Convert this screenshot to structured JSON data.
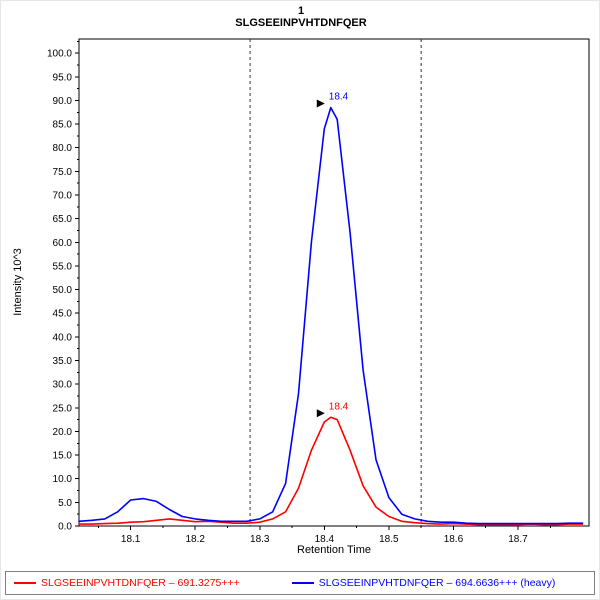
{
  "chart_data": {
    "type": "line",
    "title": "1",
    "subtitle": "SLGSEEINPVHTDNFQER",
    "xlabel": "Retention Time",
    "ylabel": "Intensity 10^3",
    "xlim": [
      18.02,
      18.81
    ],
    "ylim": [
      0,
      103
    ],
    "xticks": [
      18.1,
      18.2,
      18.3,
      18.4,
      18.5,
      18.6,
      18.7
    ],
    "yticks": [
      0,
      5,
      10,
      15,
      20,
      25,
      30,
      35,
      40,
      45,
      50,
      55,
      60,
      65,
      70,
      75,
      80,
      85,
      90,
      95,
      100
    ],
    "grid": false,
    "legend_position": "bottom",
    "integration_boundaries": [
      18.285,
      18.55
    ],
    "x": [
      18.02,
      18.04,
      18.06,
      18.08,
      18.1,
      18.12,
      18.14,
      18.16,
      18.18,
      18.2,
      18.22,
      18.24,
      18.26,
      18.28,
      18.3,
      18.32,
      18.34,
      18.36,
      18.38,
      18.4,
      18.41,
      18.42,
      18.44,
      18.46,
      18.48,
      18.5,
      18.52,
      18.54,
      18.56,
      18.58,
      18.6,
      18.62,
      18.64,
      18.66,
      18.68,
      18.7,
      18.72,
      18.74,
      18.76,
      18.78,
      18.8
    ],
    "series": [
      {
        "name": "SLGSEEINPVHTDNFQER – 691.3275+++",
        "color": "#ff0000",
        "y": [
          0.4,
          0.4,
          0.5,
          0.6,
          0.8,
          0.9,
          1.2,
          1.5,
          1.2,
          0.9,
          1.0,
          0.8,
          0.6,
          0.6,
          0.8,
          1.5,
          3.0,
          8.0,
          16.0,
          22.0,
          23.0,
          22.5,
          16.0,
          8.5,
          4.0,
          2.0,
          1.0,
          0.7,
          0.5,
          0.4,
          0.5,
          0.4,
          0.3,
          0.3,
          0.3,
          0.3,
          0.4,
          0.3,
          0.3,
          0.4,
          0.4
        ],
        "peak": {
          "x": 18.41,
          "y": 23.0,
          "label": "18.4"
        }
      },
      {
        "name": "SLGSEEINPVHTDNFQER – 694.6636+++ (heavy)",
        "color": "#0000ff",
        "y": [
          1.0,
          1.2,
          1.5,
          3.0,
          5.5,
          5.8,
          5.2,
          3.5,
          2.0,
          1.5,
          1.2,
          1.0,
          1.0,
          1.0,
          1.5,
          3.0,
          9.0,
          28.0,
          60.0,
          84.0,
          88.5,
          86.0,
          62.0,
          33.0,
          14.0,
          6.0,
          2.5,
          1.5,
          1.0,
          0.8,
          0.8,
          0.6,
          0.5,
          0.5,
          0.5,
          0.5,
          0.5,
          0.5,
          0.5,
          0.6,
          0.6
        ],
        "peak": {
          "x": 18.41,
          "y": 88.5,
          "label": "18.4"
        }
      }
    ]
  },
  "legend": {
    "items": [
      {
        "label": "SLGSEEINPVHTDNFQER – 691.3275+++"
      },
      {
        "label": "SLGSEEINPVHTDNFQER – 694.6636+++ (heavy)"
      }
    ]
  }
}
